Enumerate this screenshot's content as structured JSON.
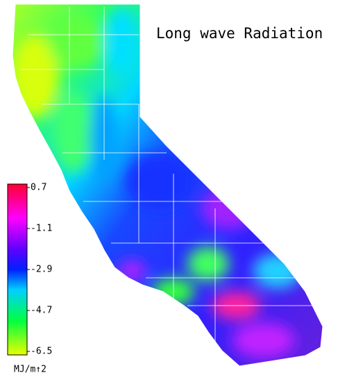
{
  "title": "Long wave Radiation",
  "colorbar": {
    "lim": [
      -6.5,
      0.7
    ],
    "ticks": [
      0.7,
      -1.1,
      -2.9,
      -4.7,
      -6.5
    ],
    "unit": "MJ/m↑2"
  }
}
